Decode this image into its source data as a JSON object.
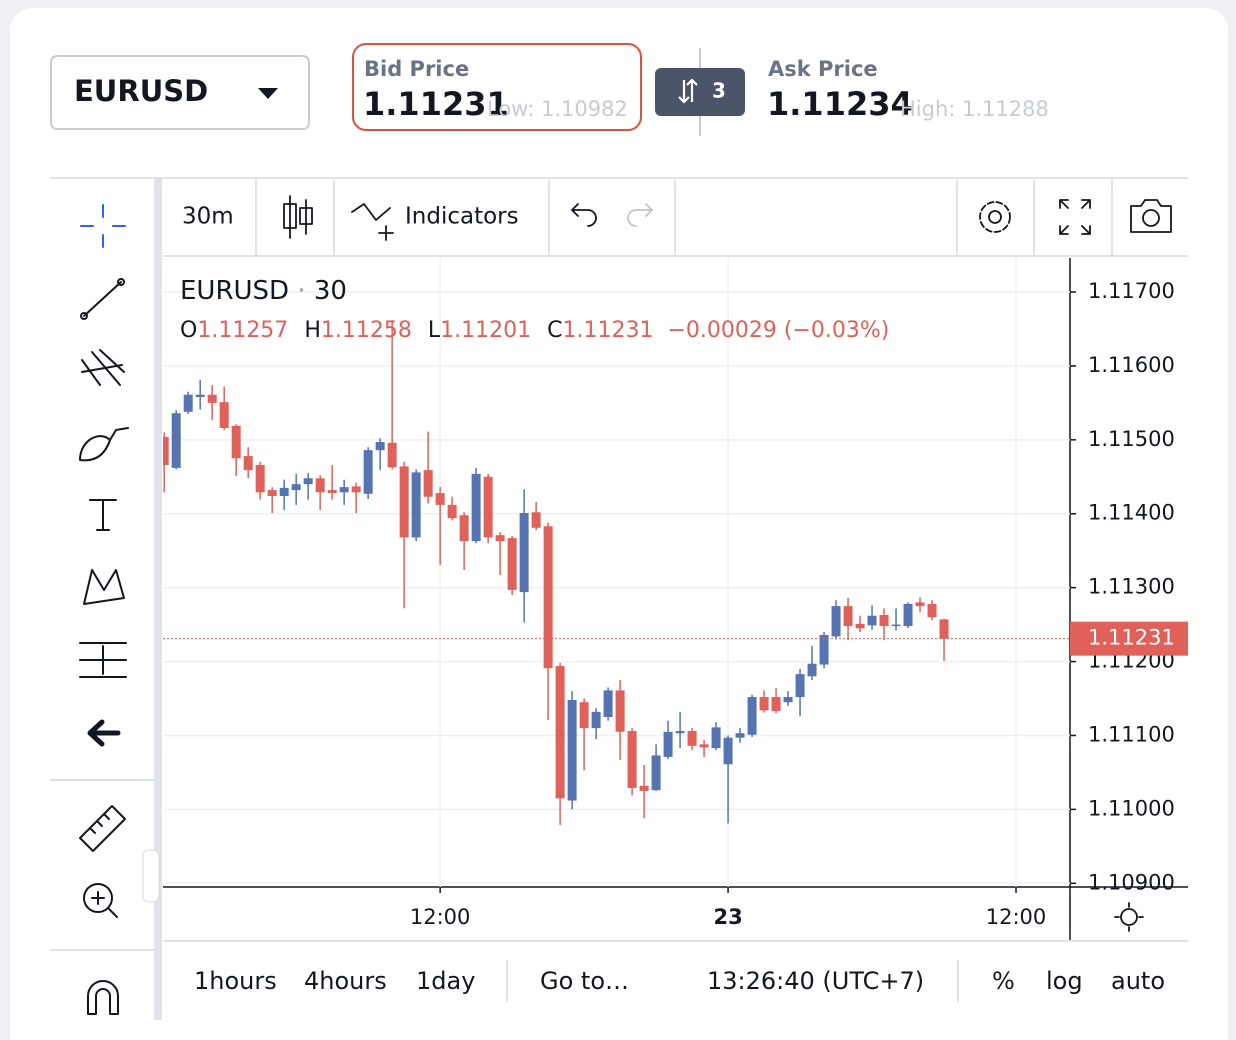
{
  "header": {
    "symbol": "EURUSD",
    "bid_label": "Bid Price",
    "bid": "1.11231",
    "low": "Low: 1.10982",
    "switch": "3",
    "ask_label": "Ask Price",
    "ask": "1.11234",
    "high": "High: 1.11288"
  },
  "toolbar": {
    "interval": "30m",
    "indicators": "Indicators"
  },
  "chart_data": {
    "type": "candlestick",
    "title": "EURUSD",
    "interval": "30",
    "ohlc_labels": [
      "O",
      "H",
      "L",
      "C"
    ],
    "change": "−0.00029 (−0.03%)",
    "up_color": "#5674b1",
    "down_color": "#e0605a",
    "open": [
      1.11504,
      1.11462,
      1.11538,
      1.11558,
      1.11561,
      1.11551,
      1.11519,
      1.11478,
      1.11466,
      1.11432,
      1.11424,
      1.11432,
      1.1144,
      1.11448,
      1.11432,
      1.11429,
      1.11437,
      1.11427,
      1.11486,
      1.11496,
      1.11464,
      1.11368,
      1.11459,
      1.11428,
      1.11412,
      1.11398,
      1.11363,
      1.1145,
      1.11371,
      1.11367,
      1.11294,
      1.11402,
      1.11383,
      1.11194,
      1.11012,
      1.11145,
      1.1111,
      1.11125,
      1.11161,
      1.11106,
      1.11032,
      1.11026,
      1.11071,
      1.11103,
      1.11106,
      1.11088,
      1.11083,
      1.11061,
      1.11097,
      1.11101,
      1.11152,
      1.11152,
      1.11145,
      1.11152,
      1.1118,
      1.11196,
      1.11234,
      1.11275,
      1.11251,
      1.11249,
      1.11263,
      1.11248,
      1.11248,
      1.1128,
      1.11278,
      1.11257
    ],
    "high": [
      1.1151,
      1.1154,
      1.11565,
      1.11581,
      1.11574,
      1.11572,
      1.11521,
      1.1149,
      1.1147,
      1.11436,
      1.11446,
      1.11454,
      1.11455,
      1.11452,
      1.11466,
      1.11446,
      1.11442,
      1.1149,
      1.11502,
      1.11662,
      1.1147,
      1.1146,
      1.11511,
      1.11436,
      1.11423,
      1.11402,
      1.11462,
      1.11454,
      1.11375,
      1.1137,
      1.11433,
      1.11416,
      1.11388,
      1.11198,
      1.1116,
      1.1115,
      1.11137,
      1.11165,
      1.11175,
      1.1111,
      1.1106,
      1.11088,
      1.1112,
      1.11132,
      1.1111,
      1.11094,
      1.11118,
      1.111,
      1.1111,
      1.11155,
      1.11161,
      1.11164,
      1.1116,
      1.1119,
      1.11221,
      1.1124,
      1.11283,
      1.11286,
      1.11262,
      1.11276,
      1.11272,
      1.11272,
      1.1128,
      1.11287,
      1.11283,
      1.11258
    ],
    "low": [
      1.11429,
      1.1146,
      1.11535,
      1.11541,
      1.11527,
      1.11513,
      1.11451,
      1.11448,
      1.11419,
      1.11401,
      1.11405,
      1.11412,
      1.11419,
      1.11405,
      1.11419,
      1.11412,
      1.11401,
      1.1142,
      1.11459,
      1.1146,
      1.11272,
      1.11363,
      1.11414,
      1.11331,
      1.11391,
      1.11324,
      1.1136,
      1.1136,
      1.11317,
      1.1129,
      1.11253,
      1.11378,
      1.11121,
      1.10979,
      1.11,
      1.11053,
      1.11095,
      1.1112,
      1.11067,
      1.11019,
      1.10988,
      1.11025,
      1.11068,
      1.11083,
      1.1108,
      1.11071,
      1.1108,
      1.10981,
      1.1109,
      1.11098,
      1.11131,
      1.1113,
      1.1114,
      1.11126,
      1.11175,
      1.11191,
      1.1123,
      1.11229,
      1.1124,
      1.11243,
      1.11229,
      1.11242,
      1.11245,
      1.11267,
      1.11256,
      1.11201
    ],
    "close": [
      1.11466,
      1.11536,
      1.11561,
      1.11561,
      1.1155,
      1.11516,
      1.11475,
      1.11459,
      1.11429,
      1.11424,
      1.11435,
      1.1144,
      1.11448,
      1.11429,
      1.11428,
      1.11436,
      1.11429,
      1.11486,
      1.11497,
      1.11463,
      1.11368,
      1.11456,
      1.11423,
      1.11412,
      1.11394,
      1.11363,
      1.11454,
      1.11368,
      1.11363,
      1.11297,
      1.11401,
      1.11381,
      1.11191,
      1.11015,
      1.11148,
      1.1111,
      1.11132,
      1.11161,
      1.11105,
      1.11029,
      1.11025,
      1.11073,
      1.11105,
      1.11106,
      1.11086,
      1.11084,
      1.11111,
      1.11097,
      1.11103,
      1.11152,
      1.11134,
      1.11133,
      1.11152,
      1.11183,
      1.11197,
      1.11236,
      1.11275,
      1.11248,
      1.11245,
      1.11262,
      1.11248,
      1.1125,
      1.11278,
      1.11275,
      1.1126,
      1.11231
    ],
    "ylim": [
      1.10895,
      1.11746
    ],
    "yticks": [
      {
        "value": 1.109,
        "label": "1.10900"
      },
      {
        "value": 1.11,
        "label": "1.11000"
      },
      {
        "value": 1.111,
        "label": "1.11100"
      },
      {
        "value": 1.112,
        "label": "1.11200"
      },
      {
        "value": 1.113,
        "label": "1.11300"
      },
      {
        "value": 1.114,
        "label": "1.11400"
      },
      {
        "value": 1.115,
        "label": "1.11500"
      },
      {
        "value": 1.116,
        "label": "1.11600"
      },
      {
        "value": 1.117,
        "label": "1.11700"
      }
    ],
    "xlim": [
      -0.1,
      75.5
    ],
    "xticks": [
      {
        "value": 23,
        "label": "12:00"
      },
      {
        "value": 47,
        "label": "23"
      },
      {
        "value": 71,
        "label": "12:00"
      }
    ],
    "grid": true,
    "last_price_line": true
  },
  "bottom_bar": {
    "ranges": [
      "1hours",
      "4hours",
      "1day"
    ],
    "goto": "Go to…",
    "time": "13:26:40 (UTC+7)",
    "options": [
      "%",
      "log",
      "auto"
    ]
  }
}
